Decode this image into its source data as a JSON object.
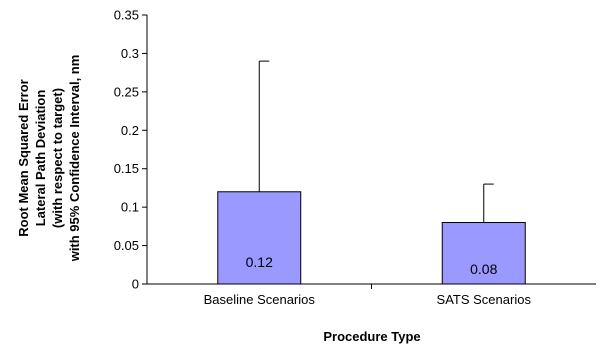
{
  "chart_data": {
    "type": "bar",
    "categories": [
      "Baseline Scenarios",
      "SATS Scenarios"
    ],
    "values": [
      0.12,
      0.08
    ],
    "error_upper": [
      0.29,
      0.13
    ],
    "data_labels": [
      "0.12",
      "0.08"
    ],
    "xlabel": "Procedure Type",
    "ylabel_lines": [
      "Root Mean Squared Error",
      "Lateral Path Deviation",
      "(with respect to target)",
      "with 95% Confidence Interval, nm"
    ],
    "ylim": [
      0,
      0.35
    ],
    "yticks": [
      0,
      0.05,
      0.1,
      0.15,
      0.2,
      0.25,
      0.3,
      0.35
    ],
    "ytick_labels": [
      "0",
      "0.05",
      "0.1",
      "0.15",
      "0.2",
      "0.25",
      "0.3",
      "0.35"
    ],
    "grid": false,
    "colors": {
      "bar_fill": "#9999ff",
      "bar_stroke": "#000000",
      "axis": "#000000",
      "error_bar": "#000000"
    }
  }
}
